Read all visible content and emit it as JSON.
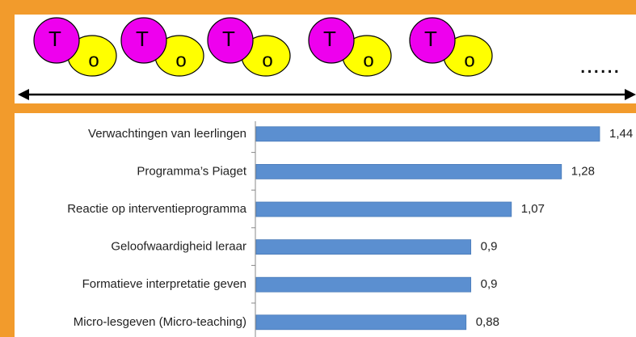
{
  "diagram": {
    "pairs": [
      {
        "t": "T",
        "o": "o"
      },
      {
        "t": "T",
        "o": "o"
      },
      {
        "t": "T",
        "o": "o"
      },
      {
        "t": "T",
        "o": "o"
      },
      {
        "t": "T",
        "o": "o"
      }
    ],
    "ellipsis": "......"
  },
  "chart_data": {
    "type": "bar",
    "orientation": "horizontal",
    "categories": [
      "Verwachtingen van leerlingen",
      "Programma’s Piaget",
      "Reactie op interventieprogramma",
      "Geloofwaardigheid leraar",
      "Formatieve interpretatie geven",
      "Micro-lesgeven (Micro-teaching)"
    ],
    "values": [
      1.44,
      1.28,
      1.07,
      0.9,
      0.9,
      0.88
    ],
    "value_labels": [
      "1,44",
      "1,28",
      "1,07",
      "0,9",
      "0,9",
      "0,88"
    ],
    "color": "#5b8fd0"
  }
}
